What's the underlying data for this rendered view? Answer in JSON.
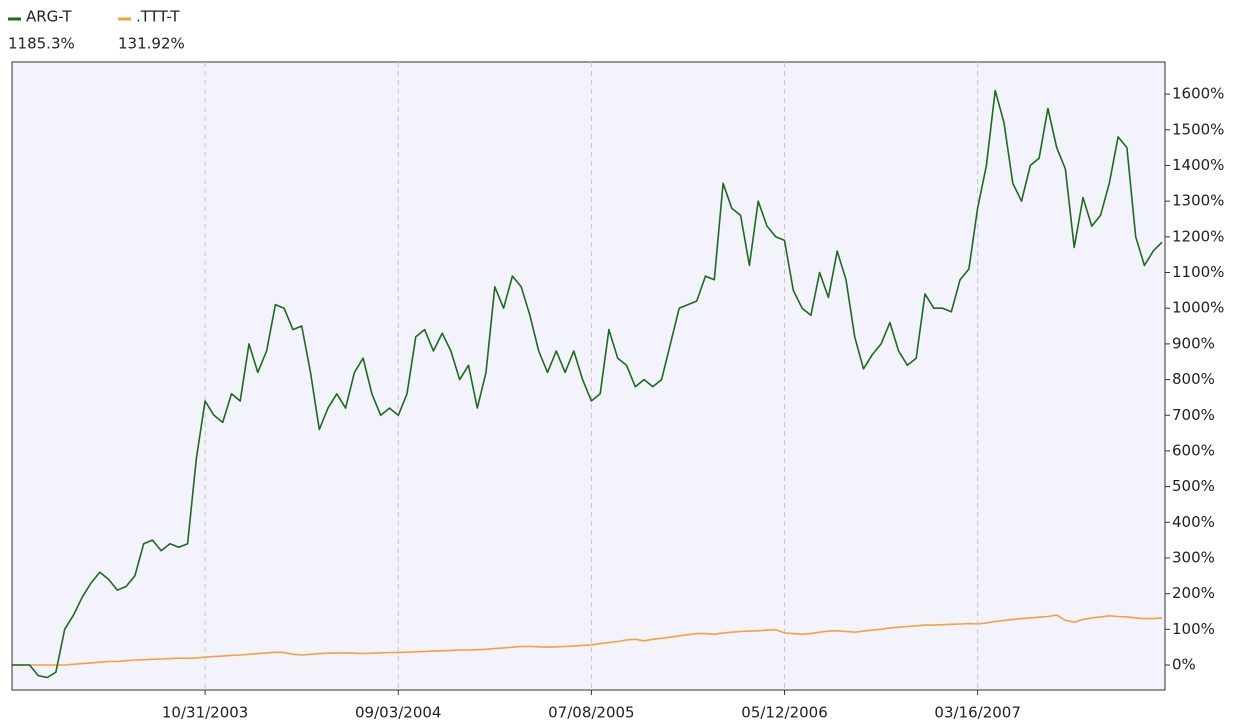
{
  "chart_data": {
    "type": "line",
    "categories": [
      null,
      null,
      null,
      null,
      null,
      null,
      null,
      null,
      null,
      null,
      null,
      null,
      null,
      null,
      null,
      null,
      null,
      null,
      null,
      null,
      null,
      null,
      "10/31/2003",
      null,
      null,
      null,
      null,
      null,
      null,
      null,
      null,
      null,
      null,
      null,
      null,
      null,
      null,
      null,
      null,
      null,
      null,
      null,
      null,
      null,
      "09/03/2004",
      null,
      null,
      null,
      null,
      null,
      null,
      null,
      null,
      null,
      null,
      null,
      null,
      null,
      null,
      null,
      null,
      null,
      null,
      null,
      null,
      null,
      "07/08/2005",
      null,
      null,
      null,
      null,
      null,
      null,
      null,
      null,
      null,
      null,
      null,
      null,
      null,
      null,
      null,
      null,
      null,
      null,
      null,
      null,
      null,
      "05/12/2006",
      null,
      null,
      null,
      null,
      null,
      null,
      null,
      null,
      null,
      null,
      null,
      null,
      null,
      null,
      null,
      null,
      null,
      null,
      null,
      null,
      null,
      "03/16/2007",
      null,
      null,
      null,
      null,
      null,
      null,
      null,
      null,
      null,
      null,
      null,
      null,
      null,
      null,
      null,
      null,
      null,
      null,
      null,
      null,
      null
    ],
    "series": [
      {
        "name": "ARG-T",
        "color": "#1e6b1e",
        "legend_value_label": "1185.3%",
        "values": [
          0,
          0,
          0,
          -30,
          -35,
          -20,
          100,
          140,
          190,
          230,
          260,
          240,
          210,
          220,
          250,
          340,
          350,
          320,
          340,
          330,
          340,
          580,
          740,
          700,
          680,
          760,
          740,
          900,
          820,
          880,
          1010,
          1000,
          940,
          950,
          820,
          660,
          720,
          760,
          720,
          820,
          860,
          760,
          700,
          720,
          700,
          760,
          920,
          940,
          880,
          930,
          880,
          800,
          840,
          720,
          820,
          1060,
          1000,
          1090,
          1060,
          980,
          880,
          820,
          880,
          820,
          880,
          800,
          740,
          760,
          940,
          860,
          840,
          780,
          800,
          780,
          800,
          900,
          1000,
          1010,
          1020,
          1090,
          1080,
          1350,
          1280,
          1260,
          1120,
          1300,
          1230,
          1200,
          1190,
          1050,
          1000,
          980,
          1100,
          1030,
          1160,
          1080,
          920,
          830,
          870,
          900,
          960,
          880,
          840,
          860,
          1040,
          1000,
          1000,
          990,
          1080,
          1110,
          1280,
          1400,
          1610,
          1520,
          1350,
          1300,
          1400,
          1420,
          1560,
          1450,
          1390,
          1170,
          1310,
          1230,
          1260,
          1350,
          1480,
          1450,
          1200,
          1120,
          1160,
          1185
        ]
      },
      {
        "name": ".TTT-T",
        "color": "#f7a03c",
        "legend_value_label": "131.92%",
        "values": [
          0,
          0,
          0,
          0,
          0,
          0,
          0,
          2,
          4,
          6,
          8,
          10,
          10,
          12,
          14,
          15,
          16,
          17,
          18,
          19,
          19,
          20,
          22,
          24,
          25,
          27,
          28,
          30,
          32,
          34,
          36,
          35,
          30,
          28,
          30,
          32,
          33,
          34,
          34,
          33,
          32,
          33,
          34,
          35,
          35,
          36,
          37,
          38,
          39,
          40,
          41,
          42,
          42,
          43,
          44,
          46,
          48,
          50,
          52,
          52,
          51,
          50,
          51,
          52,
          53,
          55,
          56,
          60,
          63,
          66,
          70,
          72,
          68,
          72,
          75,
          78,
          82,
          85,
          88,
          88,
          86,
          90,
          92,
          94,
          95,
          96,
          98,
          99,
          90,
          88,
          86,
          88,
          92,
          95,
          96,
          94,
          92,
          95,
          98,
          100,
          104,
          106,
          108,
          110,
          112,
          112,
          113,
          114,
          115,
          116,
          115,
          118,
          122,
          125,
          128,
          130,
          132,
          134,
          136,
          140,
          125,
          120,
          128,
          132,
          135,
          138,
          136,
          135,
          132,
          130,
          130,
          132
        ]
      }
    ],
    "ylim": [
      -70,
      1690
    ],
    "yticks": [
      {
        "value": 0,
        "label": "0%"
      },
      {
        "value": 100,
        "label": "100%"
      },
      {
        "value": 200,
        "label": "200%"
      },
      {
        "value": 300,
        "label": "300%"
      },
      {
        "value": 400,
        "label": "400%"
      },
      {
        "value": 500,
        "label": "500%"
      },
      {
        "value": 600,
        "label": "600%"
      },
      {
        "value": 700,
        "label": "700%"
      },
      {
        "value": 800,
        "label": "800%"
      },
      {
        "value": 900,
        "label": "900%"
      },
      {
        "value": 1000,
        "label": "1000%"
      },
      {
        "value": 1100,
        "label": "1100%"
      },
      {
        "value": 1200,
        "label": "1200%"
      },
      {
        "value": 1300,
        "label": "1300%"
      },
      {
        "value": 1400,
        "label": "1400%"
      },
      {
        "value": 1500,
        "label": "1500%"
      },
      {
        "value": 1600,
        "label": "1600%"
      }
    ],
    "y_axis_side": "right",
    "grid": "x",
    "legend": "top-left"
  }
}
